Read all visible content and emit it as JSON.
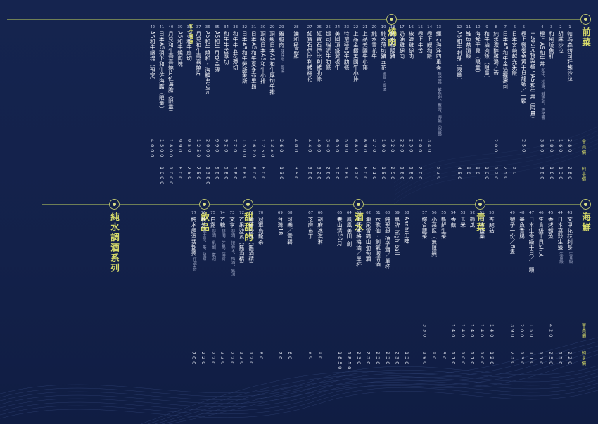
{
  "colors": {
    "background": "#13214a",
    "accent": "#d6da6a",
    "text": "#f1f3f9"
  },
  "headers": {
    "regular_price": "會員價",
    "member_price": "純享價"
  },
  "top_sections": [
    {
      "id": "qiancai",
      "title": "前菜"
    },
    {
      "id": "shaorou",
      "title": "燒肉"
    }
  ],
  "bottom_sections": [
    {
      "id": "haixian",
      "title": "海鮮"
    },
    {
      "id": "qingcai",
      "title": "青菜"
    },
    {
      "id": "jiushui",
      "title": "酒水"
    },
    {
      "id": "tiantiande",
      "title": "甜甜的"
    },
    {
      "id": "yinpin",
      "title": "飲品"
    },
    {
      "id": "chunshui",
      "title": "純水調酒系列"
    }
  ],
  "wagyu_label": "和牛饗宴",
  "top_items": [
    {
      "no": "1",
      "name": "帕瑪森烤司籽鮪沙拉",
      "p1": "2 8 0",
      "p2": "2 8 0"
    },
    {
      "no": "2",
      "name": "胡麻沙拉",
      "p1": "1 6 0",
      "p2": "1 3 0"
    },
    {
      "no": "3",
      "name": "和風燒魚肝",
      "p1": "1 8 0",
      "p2": "1 6 0"
    },
    {
      "no": "4",
      "name": "極上A5和牛丼",
      "note": "和牛、松露、鮭魚卵、魚子醬",
      "p1": "3 8 0",
      "p2": "3 8 0"
    },
    {
      "no": "",
      "name": "+200元特製極上A5和牛丼（限量）",
      "p1": "",
      "p2": ""
    },
    {
      "no": "5",
      "name": "極上響饗金黃干貝龍蝦／一顆",
      "p1": "2 5 0",
      "p2": ""
    },
    {
      "no": "6",
      "name": "日本宮崎越光米飯",
      "p1": "",
      "p2": "3 0"
    },
    {
      "no": "7",
      "name": "日本A5和牛金箔握壽司",
      "p1": "",
      "p2": "2 5 0"
    },
    {
      "no": "8",
      "name": "純水濃醇雞湯／壺",
      "p1": "2 0 0",
      "p2": "1 2 0"
    },
    {
      "no": "9",
      "name": "和牛滷肉飯（限量）",
      "p1": "",
      "p2": "1 0 0"
    },
    {
      "no": "10",
      "name": "海鮮干貝（限量）",
      "p1": "",
      "p2": "9 0"
    },
    {
      "no": "11",
      "name": "鮭魚茶漬飯",
      "p1": "",
      "p2": "9 0"
    },
    {
      "no": "12",
      "name": "A5和牛刺身（限量）",
      "p1": "",
      "p2": "4 5 0"
    },
    {
      "no": "13",
      "name": "鱷石海洋四重奏",
      "note": "魚子醬、鮭魚卵、蟹膏、海膽（限量）",
      "p1": "",
      "p2": "5 2 0"
    },
    {
      "no": "14",
      "name": "極上鰻和飯",
      "p1": "3 4 0",
      "p2": ""
    },
    {
      "no": "15",
      "name": "極上牛舌",
      "p1": "2 0 0",
      "p2": "2 0 0"
    },
    {
      "no": "16",
      "name": "椒鹽雞腿肉",
      "p1": "2 5 0",
      "p2": "1 8 0"
    },
    {
      "no": "17",
      "name": "奶油雞腿肉",
      "p1": "2 2 0",
      "p2": "1 6 0"
    },
    {
      "no": "18",
      "name": "純水松阪豬",
      "p1": "3 2 0",
      "p2": "2 5 0"
    },
    {
      "no": "19",
      "name": "純水薄切豬五花",
      "note": "椒鹽・醬燒",
      "p1": "1 9 0",
      "p2": "1 5 0"
    },
    {
      "no": "20",
      "name": "純水雪花牛",
      "p1": "2 7 0",
      "p2": "2 1 0"
    },
    {
      "no": "21",
      "name": "上品美國牛小排",
      "p1": "6 9 0",
      "p2": "6 0 0"
    },
    {
      "no": "22",
      "name": "上品金鑽美國牛小排",
      "p1": "6 8 0",
      "p2": "4 2 0"
    },
    {
      "no": "23",
      "name": "特選極品牛肋條",
      "p1": "5 0 0",
      "p2": "3 8 0"
    },
    {
      "no": "24",
      "name": "美國頂級翼板牛",
      "p1": "6 5 0",
      "p2": "5 0 0"
    },
    {
      "no": "25",
      "name": "超司瑞泥牛肋條",
      "p1": "3 4 0",
      "p2": "2 6 0"
    },
    {
      "no": "26",
      "name": "紅寶石伊比利豬肋條",
      "p1": "4 0 0",
      "p2": "3 2 0"
    },
    {
      "no": "27",
      "name": "紅寶石伊比利豬梅花",
      "p1": "4 4 0",
      "p2": "3 8 0"
    },
    {
      "no": "28",
      "name": "澳和極品雞",
      "p1": "4 0 0",
      "p2": "3 5 0"
    },
    {
      "no": "29",
      "name": "雞腿肉",
      "note": "辣味噌・醬燒",
      "p1": "2 6 0",
      "p2": "1 3 0"
    },
    {
      "no": "29",
      "name": "頂級日本A5和牛厚切牛排",
      "p1": "1 3 5 0",
      "p2": ""
    },
    {
      "no": "30",
      "name": "頂級日本A5和牛小排",
      "p1": "1 2 5 0",
      "p2": "6 0 0"
    },
    {
      "no": "31",
      "name": "日本A5和牛夏多布里昂",
      "p1": "1 6 2 0",
      "p2": "8 0 0"
    },
    {
      "no": "32",
      "name": "日本A5和牛勞斯萊斯",
      "p1": "1 5 0 0",
      "p2": "6 8 0"
    },
    {
      "no": "33",
      "name": "和牛牛五花薄切",
      "p1": "7 2 0",
      "p2": "3 8 0"
    },
    {
      "no": "34",
      "name": "和牛牛舌厚切",
      "p1": "9 2 0",
      "p2": "5 8 0"
    },
    {
      "no": "35",
      "name": "A5和牛月見金磚",
      "p1": "9 9 0",
      "p2": "5 8 0"
    },
    {
      "no": "36",
      "name": "A5和牛燒和・海膽400元",
      "p1": "2 0 0 0",
      "p2": "1 3 8 0"
    },
    {
      "no": "37",
      "name": "月見和牛壽喜燒片",
      "p1": "1 2 5 0",
      "p2": "7 5 0"
    },
    {
      "no": "38",
      "name": "A5和牛扇切",
      "p1": "9 5 0",
      "p2": "7 5 0"
    },
    {
      "no": "39",
      "name": "A5和牛燒肉塊",
      "p1": "9 9 0",
      "p2": "6 0 0"
    },
    {
      "no": "40",
      "name": "月見和牛壽喜燒片佐海膽（限量）",
      "p1": "1 8 0 0",
      "p2": "1 0 0 0"
    },
    {
      "no": "41",
      "name": "日本A5羽下和牛佐海膽（限量）",
      "p1": "1 5 0 0",
      "p2": "1 0 0 0"
    },
    {
      "no": "42",
      "name": "A5和牛鑄塊（預定）",
      "p1": "4 0 0 0",
      "p2": ""
    }
  ],
  "bottom_items": [
    {
      "no": "43",
      "name": "文甲花枝刺身",
      "note": "生食級",
      "p1": "",
      "p2": "2 2 0"
    },
    {
      "no": "44",
      "name": "日本寫殼生蠔",
      "note": "生食級",
      "p1": "",
      "p2": "1 5 0"
    },
    {
      "no": "45",
      "name": "香烤鯖魚",
      "p1": "4 2 0",
      "p2": "2 5 0"
    },
    {
      "no": "46",
      "name": "生食級干貝shot",
      "p1": "",
      "p2": "1 1 0"
    },
    {
      "no": "47",
      "name": "日本生食級干貝／一顆",
      "p1": "1 5 0",
      "p2": "1 1 0"
    },
    {
      "no": "48",
      "name": "墨魚香腸",
      "p1": "2 0 0",
      "p2": "1 3 0"
    },
    {
      "no": "49",
      "name": "蝦子一份／6隻",
      "p1": "3 9 0",
      "p2": "2 3 0"
    },
    {
      "no": "50",
      "name": "杏鮑菇",
      "p1": "1 4 0",
      "p2": "1 2 0"
    },
    {
      "no": "51",
      "name": "日本山藥",
      "p1": "1 4 0",
      "p2": "1 0 0"
    },
    {
      "no": "52",
      "name": "櫛瓜",
      "p1": "1 4 0",
      "p2": "1 1 0"
    },
    {
      "no": "53",
      "name": "玉米",
      "p1": "1 4 0",
      "p2": "1 0 0"
    },
    {
      "no": "54",
      "name": "香菇",
      "p1": "1 4 0",
      "p2": "1 1 0"
    },
    {
      "no": "55",
      "name": "新鮮生菜",
      "p1": "",
      "p2": "5 0"
    },
    {
      "no": "56",
      "name": "小菜區（無限續）",
      "p1": "",
      "p2": "9 0"
    },
    {
      "no": "57",
      "name": "綜合蔬菜",
      "p1": "3 3 0",
      "p2": "1 8 0"
    },
    {
      "no": "58",
      "name": "Asahi生啤",
      "p1": "",
      "p2": "1 3 0"
    },
    {
      "no": "59",
      "name": "黑牌 high ball",
      "p1": "",
      "p2": "2 3 0"
    },
    {
      "no": "60",
      "name": "純聖想 柚子酒／單杯",
      "p1": "",
      "p2": "2 3 0"
    },
    {
      "no": "61",
      "name": "六歌仙・劍氣泡清酒",
      "p1": "",
      "p2": "2 3 0"
    },
    {
      "no": "62",
      "name": "瀨尾雪鶴山葡萄酒",
      "p1": "",
      "p2": "2 3 0"
    },
    {
      "no": "63",
      "name": "上等本格梅酒／單杯",
      "p1": "",
      "p2": "2 3 0"
    },
    {
      "no": "64",
      "name": "鳳凰美田 劍",
      "p1": "",
      "p2": "1 8 5 0"
    },
    {
      "no": "65",
      "name": "養山清50月",
      "p1": "",
      "p2": "1 8 5 0"
    },
    {
      "no": "66",
      "name": "胡麻冰淇淋",
      "p1": "",
      "p2": "9 0"
    },
    {
      "no": "67",
      "name": "芝麻布丁",
      "p1": "",
      "p2": "9 0"
    },
    {
      "no": "68",
      "name": "可樂／雪碧",
      "p1": "",
      "p2": "6 0"
    },
    {
      "no": "69",
      "name": "台灣18",
      "p1": "",
      "p2": "7 0"
    },
    {
      "no": "70",
      "name": "冠軍烏龍茶",
      "p1": "",
      "p2": "8 0"
    },
    {
      "no": "71",
      "name": "葡萄沙瓦（無酒精）",
      "p1": "",
      "p2": "1 2 0"
    },
    {
      "no": "72",
      "name": "芒果沙瓦（無酒精）",
      "p1": "",
      "p2": "1 2 0"
    },
    {
      "no": "73",
      "name": "文享",
      "note": "琴酒、接骨木、梅酒、氣泡",
      "p1": "",
      "p2": "2 2 0"
    },
    {
      "no": "74",
      "name": "芒糖",
      "note": "琴酒、芒果、薄荷",
      "p1": "",
      "p2": "2 2 0"
    },
    {
      "no": "75",
      "name": "白露",
      "note": "琴酒、乳酸、氣泡",
      "p1": "",
      "p2": "2 2 0"
    },
    {
      "no": "76",
      "name": "秋分",
      "note": "威士忌、茶、酸甜",
      "p1": "",
      "p2": "2 2 0"
    },
    {
      "no": "77",
      "name": "純水調酒我都要",
      "note": "任選4款",
      "p1": "",
      "p2": "7 0 0"
    }
  ]
}
